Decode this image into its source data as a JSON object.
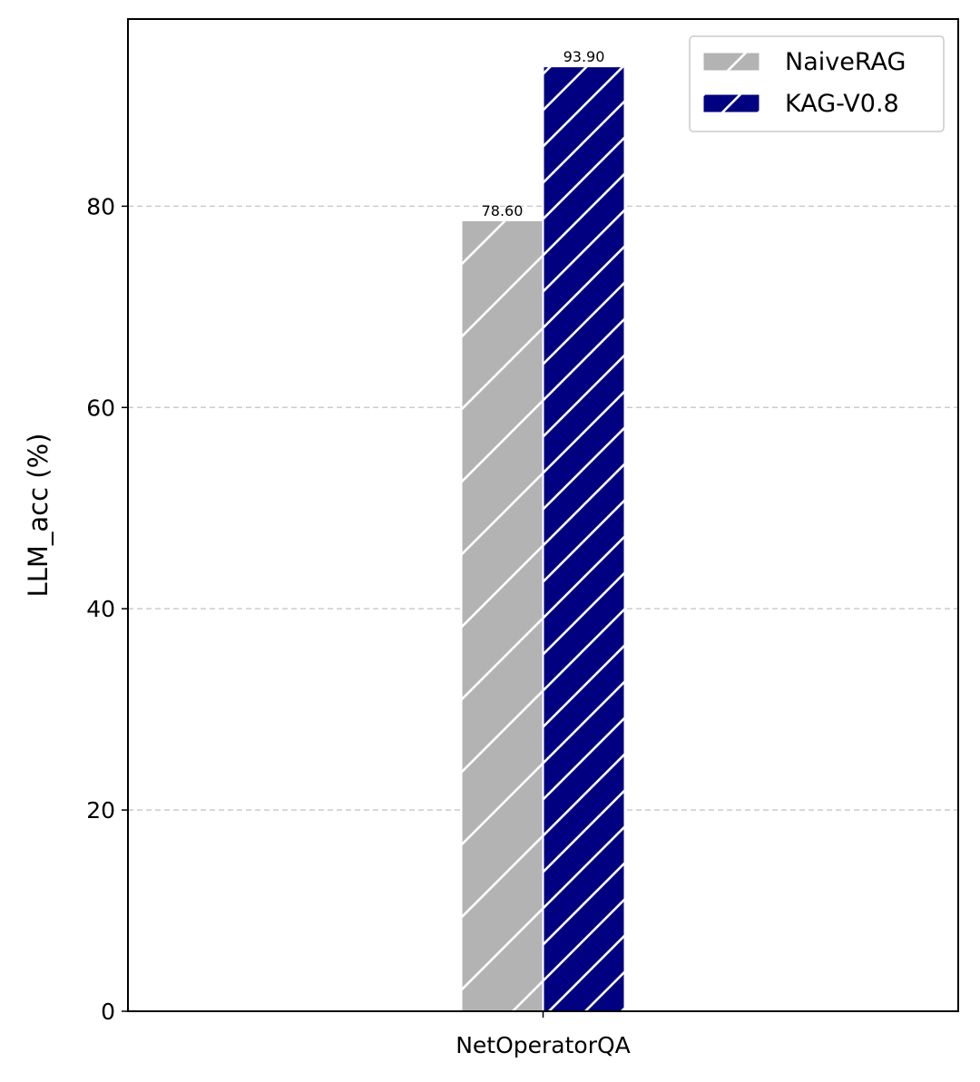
{
  "chart_data": {
    "type": "bar",
    "categories": [
      "NetOperatorQA"
    ],
    "series": [
      {
        "name": "NaiveRAG",
        "values": [
          78.6
        ],
        "labels": [
          "78.60"
        ],
        "color": "#b3b3b3",
        "hatch": "/"
      },
      {
        "name": "KAG-V0.8",
        "values": [
          93.9
        ],
        "labels": [
          "93.90"
        ],
        "color": "#000080",
        "hatch": "//"
      }
    ],
    "xlabel": "",
    "ylabel": "LLM_acc (%)",
    "ylim": [
      0,
      98.6
    ],
    "yticks": [
      0,
      20,
      40,
      60,
      80
    ],
    "grid": "y-dashed",
    "legend": "top-right"
  }
}
